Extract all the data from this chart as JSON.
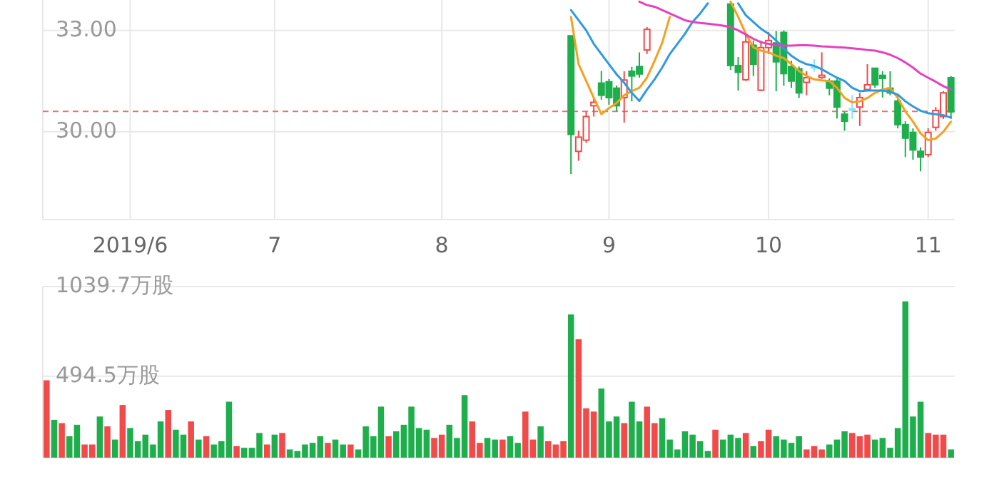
{
  "chart_data": [
    {
      "type": "candlestick",
      "categories": [
        null,
        null,
        null,
        null,
        null,
        null,
        null,
        null,
        null,
        null,
        null,
        "2019/6",
        null,
        null,
        null,
        null,
        null,
        null,
        null,
        null,
        null,
        null,
        null,
        null,
        null,
        null,
        null,
        null,
        null,
        null,
        "7",
        null,
        null,
        null,
        null,
        null,
        null,
        null,
        null,
        null,
        null,
        null,
        null,
        null,
        null,
        null,
        null,
        null,
        null,
        null,
        null,
        null,
        "8",
        null,
        null,
        null,
        null,
        null,
        null,
        null,
        null,
        null,
        null,
        null,
        null,
        null,
        null,
        null,
        null,
        null,
        null,
        null,
        null,
        null,
        "9",
        null,
        null,
        null,
        null,
        null,
        null,
        null,
        null,
        null,
        null,
        null,
        null,
        null,
        null,
        null,
        null,
        null,
        null,
        null,
        null,
        "10",
        null,
        null,
        null,
        null,
        null,
        null,
        null,
        null,
        null,
        null,
        null,
        null,
        null,
        null,
        null,
        null,
        null,
        null,
        null,
        null,
        "11",
        null,
        null,
        null
      ],
      "ohlc": [
        null,
        null,
        null,
        null,
        null,
        null,
        null,
        null,
        null,
        null,
        null,
        null,
        null,
        null,
        null,
        null,
        null,
        null,
        null,
        null,
        null,
        null,
        null,
        null,
        null,
        null,
        null,
        null,
        null,
        null,
        null,
        null,
        null,
        null,
        null,
        null,
        null,
        null,
        null,
        null,
        null,
        null,
        null,
        null,
        null,
        null,
        null,
        null,
        null,
        null,
        null,
        null,
        null,
        null,
        null,
        null,
        null,
        null,
        null,
        null,
        null,
        null,
        null,
        null,
        null,
        null,
        null,
        null,
        null,
        [
          32.84,
          32.84,
          28.75,
          29.92
        ],
        [
          29.42,
          30.03,
          29.14,
          29.84
        ],
        [
          29.75,
          30.59,
          29.67,
          30.45
        ],
        [
          30.77,
          31.01,
          30.45,
          30.87
        ],
        [
          31.44,
          31.8,
          30.95,
          31.08
        ],
        [
          31.48,
          31.56,
          30.8,
          31.01
        ],
        [
          31.29,
          31.37,
          30.6,
          30.77
        ],
        [
          31.01,
          31.79,
          30.27,
          31.53
        ],
        [
          31.79,
          31.92,
          30.9,
          31.65
        ],
        [
          31.93,
          32.35,
          31.6,
          31.71
        ],
        [
          32.42,
          33.1,
          32.3,
          33.03
        ],
        null,
        null,
        null,
        null,
        null,
        null,
        null,
        null,
        null,
        null,
        [
          33.78,
          33.85,
          31.83,
          31.96
        ],
        [
          31.96,
          32.21,
          31.22,
          31.76
        ],
        [
          31.54,
          32.9,
          31.5,
          32.66
        ],
        [
          32.56,
          32.7,
          31.65,
          32.0
        ],
        [
          31.23,
          32.7,
          31.2,
          32.49
        ],
        [
          32.49,
          32.95,
          32.3,
          32.7
        ],
        [
          32.63,
          32.98,
          31.2,
          32.07
        ],
        [
          32.94,
          33.0,
          31.36,
          31.72
        ],
        [
          31.93,
          32.1,
          31.3,
          31.5
        ],
        [
          31.86,
          31.93,
          31.0,
          31.15
        ],
        [
          31.46,
          31.79,
          31.08,
          31.6
        ],
        [
          31.93,
          32.14,
          31.78,
          31.93
        ],
        [
          31.61,
          32.35,
          31.56,
          31.67
        ],
        [
          31.5,
          31.58,
          31.08,
          31.29
        ],
        [
          31.5,
          31.58,
          30.39,
          30.73
        ],
        [
          30.52,
          30.59,
          30.03,
          30.31
        ],
        [
          30.68,
          31.08,
          30.38,
          30.68
        ],
        [
          30.73,
          31.15,
          30.17,
          31.01
        ],
        [
          31.25,
          32.0,
          31.25,
          31.39
        ],
        [
          31.88,
          31.88,
          31.3,
          31.39
        ],
        [
          31.67,
          31.79,
          31.01,
          31.58
        ],
        [
          31.29,
          31.79,
          31.08,
          31.15
        ],
        [
          30.91,
          31.08,
          30.1,
          30.21
        ],
        [
          30.21,
          30.31,
          29.25,
          29.81
        ],
        [
          29.98,
          30.1,
          29.17,
          29.46
        ],
        [
          29.42,
          29.54,
          28.83,
          29.25
        ],
        [
          29.32,
          30.1,
          29.25,
          29.98
        ],
        [
          30.13,
          30.73,
          30.03,
          30.63
        ],
        [
          30.45,
          31.2,
          30.38,
          31.15
        ],
        [
          31.6,
          31.65,
          30.38,
          30.59
        ]
      ],
      "colors": [
        null,
        null,
        null,
        null,
        null,
        null,
        null,
        null,
        null,
        null,
        null,
        null,
        null,
        null,
        null,
        null,
        null,
        null,
        null,
        null,
        null,
        null,
        null,
        null,
        null,
        null,
        null,
        null,
        null,
        null,
        null,
        null,
        null,
        null,
        null,
        null,
        null,
        null,
        null,
        null,
        null,
        null,
        null,
        null,
        null,
        null,
        null,
        null,
        null,
        null,
        null,
        null,
        null,
        null,
        null,
        null,
        null,
        null,
        null,
        null,
        null,
        null,
        null,
        null,
        null,
        null,
        null,
        null,
        null,
        "#1eae4c",
        "#f24949",
        "#f24949",
        "#f24949",
        "#1eae4c",
        "#1eae4c",
        "#1eae4c",
        "#f24949",
        "#1eae4c",
        "#1eae4c",
        "#f24949",
        null,
        null,
        null,
        null,
        null,
        null,
        null,
        null,
        null,
        null,
        "#1eae4c",
        "#1eae4c",
        "#f24949",
        "#1eae4c",
        "#f24949",
        "#f24949",
        "#1eae4c",
        "#1eae4c",
        "#1eae4c",
        "#1eae4c",
        "#f24949",
        "#8ee2f4",
        "#f24949",
        "#1eae4c",
        "#1eae4c",
        "#1eae4c",
        "#8ee2f4",
        "#f24949",
        "#f24949",
        "#1eae4c",
        "#1eae4c",
        "#1eae4c",
        "#1eae4c",
        "#1eae4c",
        "#1eae4c",
        "#1eae4c",
        "#f24949",
        "#f24949",
        "#f24949",
        "#1eae4c"
      ],
      "series": [
        {
          "type": "line",
          "color": "#f5a020",
          "values": [
            null,
            null,
            null,
            null,
            null,
            null,
            null,
            null,
            null,
            null,
            null,
            null,
            null,
            null,
            null,
            null,
            null,
            null,
            null,
            null,
            null,
            null,
            null,
            null,
            null,
            null,
            null,
            null,
            null,
            null,
            null,
            null,
            null,
            null,
            null,
            null,
            null,
            null,
            null,
            null,
            null,
            null,
            null,
            null,
            null,
            null,
            null,
            null,
            null,
            null,
            null,
            null,
            null,
            null,
            null,
            null,
            null,
            null,
            null,
            null,
            null,
            null,
            null,
            null,
            null,
            null,
            null,
            null,
            null,
            33.4,
            32.0,
            31.5,
            31.0,
            30.52,
            30.7,
            30.85,
            31.08,
            31.2,
            31.3,
            31.6,
            32.1,
            32.63,
            33.4,
            null,
            null,
            null,
            null,
            null,
            null,
            null,
            33.85,
            33.4,
            32.9,
            32.5,
            32.4,
            32.35,
            32.25,
            32.18,
            32.0,
            31.8,
            31.65,
            31.55,
            31.52,
            31.5,
            31.3,
            31.0,
            30.87,
            30.9,
            31.0,
            31.15,
            31.25,
            31.29,
            31.0,
            30.6,
            30.3,
            29.95,
            29.75,
            29.8,
            30.0,
            30.3
          ]
        },
        {
          "type": "line",
          "color": "#2f9ae0",
          "values": [
            null,
            null,
            null,
            null,
            null,
            null,
            null,
            null,
            null,
            null,
            null,
            null,
            null,
            null,
            null,
            null,
            null,
            null,
            null,
            null,
            null,
            null,
            null,
            null,
            null,
            null,
            null,
            null,
            null,
            null,
            null,
            null,
            null,
            null,
            null,
            null,
            null,
            null,
            null,
            null,
            null,
            null,
            null,
            null,
            null,
            null,
            null,
            null,
            null,
            null,
            null,
            null,
            null,
            null,
            null,
            null,
            null,
            null,
            null,
            null,
            null,
            null,
            null,
            null,
            null,
            null,
            null,
            null,
            null,
            33.6,
            33.3,
            33.0,
            32.6,
            32.3,
            32.0,
            31.7,
            31.45,
            31.15,
            30.91,
            31.25,
            31.55,
            31.9,
            32.3,
            32.6,
            32.9,
            33.25,
            33.5,
            33.8,
            null,
            null,
            null,
            33.8,
            33.45,
            33.25,
            33.05,
            32.9,
            32.7,
            32.45,
            32.25,
            32.1,
            32.0,
            31.95,
            31.85,
            31.72,
            31.6,
            31.5,
            31.3,
            31.2,
            31.22,
            31.22,
            31.22,
            31.18,
            31.1,
            30.9,
            30.75,
            30.62,
            30.55,
            30.52,
            30.49,
            30.42
          ]
        },
        {
          "type": "line",
          "color": "#e640c0",
          "values": [
            null,
            null,
            null,
            null,
            null,
            null,
            null,
            null,
            null,
            null,
            null,
            null,
            null,
            null,
            null,
            null,
            null,
            null,
            null,
            null,
            null,
            null,
            null,
            null,
            null,
            null,
            null,
            null,
            null,
            null,
            null,
            null,
            null,
            null,
            null,
            null,
            null,
            null,
            null,
            null,
            null,
            null,
            null,
            null,
            null,
            null,
            null,
            null,
            null,
            null,
            null,
            null,
            null,
            null,
            null,
            null,
            null,
            null,
            null,
            null,
            null,
            null,
            null,
            null,
            null,
            null,
            null,
            null,
            null,
            null,
            null,
            null,
            null,
            null,
            null,
            null,
            null,
            null,
            33.85,
            33.75,
            33.7,
            33.6,
            33.5,
            33.4,
            33.3,
            33.25,
            33.22,
            33.2,
            33.17,
            33.14,
            33.1,
            33.0,
            32.88,
            32.75,
            32.65,
            32.6,
            32.56,
            32.55,
            32.55,
            32.56,
            32.56,
            32.55,
            32.53,
            32.52,
            32.5,
            32.49,
            32.47,
            32.45,
            32.42,
            32.4,
            32.35,
            32.28,
            32.18,
            32.05,
            31.9,
            31.72,
            31.6,
            31.48,
            31.35,
            31.25
          ]
        }
      ],
      "ylim": [
        27.4,
        33.9
      ],
      "yticks": [
        {
          "value": 30,
          "label": "30.00"
        },
        {
          "value": 33,
          "label": "33.00"
        }
      ],
      "grid": true,
      "ref_lines": [
        {
          "axis": "y",
          "value": 30.6,
          "color": "#e57373",
          "line_style": "dashed"
        }
      ]
    },
    {
      "type": "bar",
      "categories": [
        null,
        null,
        null,
        null,
        null,
        null,
        null,
        null,
        null,
        null,
        null,
        null,
        null,
        null,
        null,
        null,
        null,
        null,
        null,
        null,
        null,
        null,
        null,
        null,
        null,
        null,
        null,
        null,
        null,
        null,
        null,
        null,
        null,
        null,
        null,
        null,
        null,
        null,
        null,
        null,
        null,
        null,
        null,
        null,
        null,
        null,
        null,
        null,
        null,
        null,
        null,
        null,
        null,
        null,
        null,
        null,
        null,
        null,
        null,
        null,
        null,
        null,
        null,
        null,
        null,
        null,
        null,
        null,
        null,
        null,
        null,
        null,
        null,
        null,
        null,
        null,
        null,
        null,
        null,
        null,
        null,
        null,
        null,
        null,
        null,
        null,
        null,
        null,
        null,
        null,
        null,
        null,
        null,
        null,
        null,
        null,
        null,
        null,
        null,
        null,
        null,
        null,
        null,
        null,
        null,
        null,
        null,
        null,
        null,
        null,
        null,
        null,
        null,
        null,
        null,
        null,
        null,
        null,
        null,
        null
      ],
      "values": [
        470,
        230,
        210,
        130,
        200,
        80,
        80,
        250,
        190,
        110,
        320,
        180,
        100,
        140,
        80,
        220,
        290,
        170,
        140,
        220,
        110,
        130,
        80,
        100,
        340,
        70,
        60,
        60,
        150,
        80,
        140,
        150,
        50,
        40,
        80,
        90,
        130,
        90,
        110,
        80,
        80,
        50,
        190,
        130,
        310,
        130,
        160,
        200,
        310,
        180,
        170,
        120,
        140,
        200,
        120,
        380,
        220,
        90,
        120,
        110,
        110,
        130,
        90,
        280,
        110,
        190,
        100,
        80,
        100,
        870,
        720,
        300,
        280,
        420,
        220,
        250,
        210,
        340,
        220,
        310,
        210,
        240,
        110,
        50,
        160,
        140,
        100,
        40,
        170,
        110,
        140,
        120,
        150,
        70,
        100,
        170,
        130,
        110,
        90,
        130,
        50,
        70,
        50,
        80,
        110,
        160,
        150,
        130,
        140,
        110,
        120,
        60,
        180,
        950,
        250,
        340,
        150,
        140,
        140,
        50
      ],
      "colors": [
        "#f24949",
        "#1eae4c",
        "#f24949",
        "#1eae4c",
        "#1eae4c",
        "#f24949",
        "#f24949",
        "#1eae4c",
        "#f24949",
        "#1eae4c",
        "#f24949",
        "#1eae4c",
        "#1eae4c",
        "#1eae4c",
        "#1eae4c",
        "#1eae4c",
        "#f24949",
        "#1eae4c",
        "#1eae4c",
        "#f24949",
        "#1eae4c",
        "#f24949",
        "#1eae4c",
        "#1eae4c",
        "#1eae4c",
        "#f24949",
        "#1eae4c",
        "#1eae4c",
        "#1eae4c",
        "#f24949",
        "#1eae4c",
        "#f24949",
        "#1eae4c",
        "#1eae4c",
        "#1eae4c",
        "#1eae4c",
        "#1eae4c",
        "#f24949",
        "#1eae4c",
        "#1eae4c",
        "#f24949",
        "#1eae4c",
        "#1eae4c",
        "#1eae4c",
        "#1eae4c",
        "#f24949",
        "#1eae4c",
        "#1eae4c",
        "#1eae4c",
        "#1eae4c",
        "#1eae4c",
        "#f24949",
        "#f24949",
        "#1eae4c",
        "#1eae4c",
        "#1eae4c",
        "#f24949",
        "#f24949",
        "#1eae4c",
        "#1eae4c",
        "#f24949",
        "#1eae4c",
        "#1eae4c",
        "#f24949",
        "#f24949",
        "#1eae4c",
        "#f24949",
        "#f24949",
        "#f24949",
        "#1eae4c",
        "#f24949",
        "#f24949",
        "#f24949",
        "#1eae4c",
        "#1eae4c",
        "#1eae4c",
        "#f24949",
        "#1eae4c",
        "#1eae4c",
        "#f24949",
        "#f24949",
        "#1eae4c",
        "#1eae4c",
        "#1eae4c",
        "#1eae4c",
        "#1eae4c",
        "#1eae4c",
        "#1eae4c",
        "#f24949",
        "#1eae4c",
        "#1eae4c",
        "#1eae4c",
        "#f24949",
        "#1eae4c",
        "#f24949",
        "#f24949",
        "#1eae4c",
        "#1eae4c",
        "#1eae4c",
        "#1eae4c",
        "#f24949",
        "#f24949",
        "#f24949",
        "#1eae4c",
        "#1eae4c",
        "#1eae4c",
        "#f24949",
        "#f24949",
        "#f24949",
        "#1eae4c",
        "#1eae4c",
        "#1eae4c",
        "#1eae4c",
        "#1eae4c",
        "#1eae4c",
        "#1eae4c",
        "#f24949",
        "#f24949",
        "#f24949",
        "#1eae4c"
      ],
      "ylim": [
        0,
        1039.7
      ],
      "yticks": [
        {
          "value": 494.5,
          "label": "494.5万股"
        },
        {
          "value": 1039.7,
          "label": "1039.7万股"
        }
      ],
      "grid": "y"
    }
  ]
}
